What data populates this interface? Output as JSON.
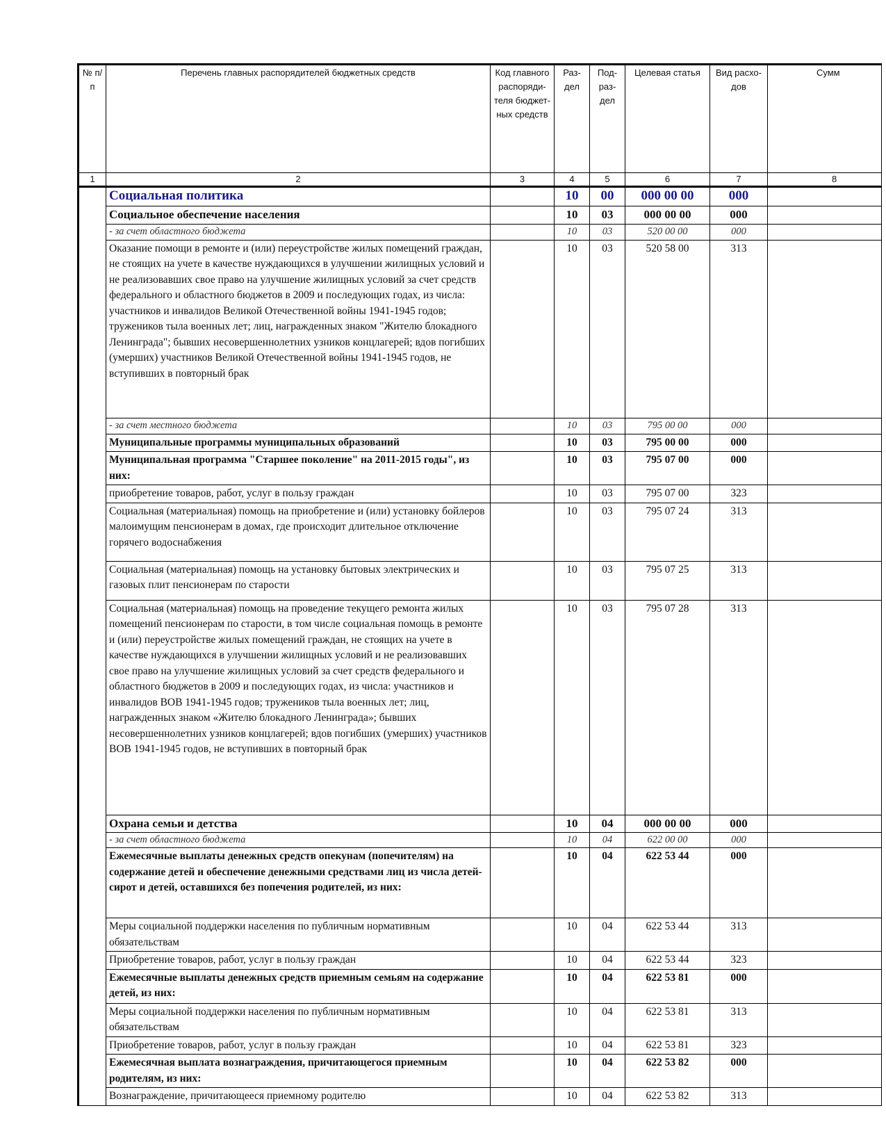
{
  "header": {
    "col1": "№ п/п",
    "col2": "Перечень главных распорядителей бюджетных средств",
    "col3": "Код главного распоряди-теля бюджет-ных средств",
    "col4": "Раз-дел",
    "col5": "Под-раз-дел",
    "col6": "Целевая статья",
    "col7": "Вид расхо-дов",
    "col8": "Сумм"
  },
  "column_numbers": [
    "1",
    "2",
    "3",
    "4",
    "5",
    "6",
    "7",
    "8"
  ],
  "rows": [
    {
      "style": "section",
      "name": "Социальная политика",
      "razdel": "10",
      "podrazdel": "00",
      "cs": "000 00 00",
      "vr": "000"
    },
    {
      "style": "bold2",
      "name": "Социальное обеспечение населения",
      "razdel": "10",
      "podrazdel": "03",
      "cs": "000 00 00",
      "vr": "000"
    },
    {
      "style": "italic",
      "name": "- за счет областного бюджета",
      "razdel": "10",
      "podrazdel": "03",
      "cs": "520 00 00",
      "vr": "000"
    },
    {
      "style": "normal",
      "name": "Оказание помощи в ремонте и (или) переустройстве жилых помещений граждан, не стоящих на учете в качестве нуждающихся в улучшении жилищных условий и не реализовавших свое право на улучшение жилищных условий за счет средств федерального и областного бюджетов в 2009 и последующих годах, из числа: участников и инвалидов Великой Отечественной войны 1941-1945 годов; тружеников тыла военных лет; лиц, награжденных знаком \"Жителю блокадного Ленинграда\"; бывших несовершеннолетних узников концлагерей; вдов погибших (умерших) участников Великой Отечественной войны 1941-1945 годов, не вступивших в повторный брак",
      "razdel": "10",
      "podrazdel": "03",
      "cs": "520 58 00",
      "vr": "313"
    },
    {
      "style": "italic",
      "name": "- за счет местного бюджета",
      "razdel": "10",
      "podrazdel": "03",
      "cs": "795 00 00",
      "vr": "000"
    },
    {
      "style": "bold",
      "name": "Муниципальные программы муниципальных образований",
      "razdel": "10",
      "podrazdel": "03",
      "cs": "795 00 00",
      "vr": "000"
    },
    {
      "style": "bold",
      "name": "Муниципальная программа \"Старшее поколение\" на 2011-2015 годы\", из них:",
      "razdel": "10",
      "podrazdel": "03",
      "cs": "795 07 00",
      "vr": "000"
    },
    {
      "style": "normal",
      "name": "приобретение товаров, работ, услуг в пользу граждан",
      "razdel": "10",
      "podrazdel": "03",
      "cs": "795 07 00",
      "vr": "323"
    },
    {
      "style": "normal",
      "name": "Социальная (материальная) помощь на приобретение и (или) установку бойлеров малоимущим пенсионерам в домах, где происходит длительное отключение горячего водоснабжения",
      "razdel": "10",
      "podrazdel": "03",
      "cs": "795 07 24",
      "vr": "313"
    },
    {
      "style": "normal",
      "name": "Социальная (материальная) помощь на установку бытовых электрических и газовых плит пенсионерам по старости",
      "razdel": "10",
      "podrazdel": "03",
      "cs": "795 07 25",
      "vr": "313"
    },
    {
      "style": "normal",
      "name": "Социальная (материальная) помощь на проведение текущего ремонта жилых помещений пенсионерам по старости, в том числе социальная помощь в ремонте и (или) переустройстве жилых помещений граждан, не стоящих на учете в качестве нуждающихся в улучшении жилищных условий и не реализовавших свое право на улучшение жилищных условий за счет средств федерального и областного бюджетов в 2009 и последующих годах, из числа: участников и инвалидов ВОВ 1941-1945 годов; тружеников тыла военных лет; лиц, награжденных знаком «Жителю блокадного Ленинграда»; бывших несовершеннолетних узников концлагерей; вдов погибших (умерших) участников ВОВ 1941-1945 годов, не вступивших в повторный брак",
      "razdel": "10",
      "podrazdel": "03",
      "cs": "795 07 28",
      "vr": "313"
    },
    {
      "style": "bold2",
      "name": "Охрана семьи и детства",
      "razdel": "10",
      "podrazdel": "04",
      "cs": "000 00 00",
      "vr": "000"
    },
    {
      "style": "italic",
      "name": "- за счет областного бюджета",
      "razdel": "10",
      "podrazdel": "04",
      "cs": "622 00 00",
      "vr": "000"
    },
    {
      "style": "bold",
      "name": "Ежемесячные выплаты денежных средств опекунам (попечителям) на содержание детей и обеспечение денежными средствами лиц из числа детей-сирот и детей, оставшихся без попечения родителей, из них:",
      "razdel": "10",
      "podrazdel": "04",
      "cs": "622 53 44",
      "vr": "000"
    },
    {
      "style": "normal",
      "name": "Меры социальной поддержки населения по публичным нормативным обязательствам",
      "razdel": "10",
      "podrazdel": "04",
      "cs": "622 53 44",
      "vr": "313"
    },
    {
      "style": "normal",
      "name": "Приобретение товаров, работ, услуг в пользу граждан",
      "razdel": "10",
      "podrazdel": "04",
      "cs": "622 53 44",
      "vr": "323"
    },
    {
      "style": "bold",
      "name": "Ежемесячные выплаты денежных средств приемным семьям на содержание детей, из них:",
      "razdel": "10",
      "podrazdel": "04",
      "cs": "622 53 81",
      "vr": "000"
    },
    {
      "style": "normal",
      "name": "Меры социальной поддержки населения по публичным нормативным обязательствам",
      "razdel": "10",
      "podrazdel": "04",
      "cs": "622 53 81",
      "vr": "313"
    },
    {
      "style": "normal",
      "name": "Приобретение товаров, работ, услуг в пользу граждан",
      "razdel": "10",
      "podrazdel": "04",
      "cs": "622 53 81",
      "vr": "323"
    },
    {
      "style": "bold",
      "name": "Ежемесячная выплата вознаграждения, причитающегося приемным родителям, из них:",
      "razdel": "10",
      "podrazdel": "04",
      "cs": "622 53 82",
      "vr": "000"
    },
    {
      "style": "normal",
      "name": "Вознаграждение, причитающееся приемному родителю",
      "razdel": "10",
      "podrazdel": "04",
      "cs": "622 53 82",
      "vr": "313"
    }
  ]
}
